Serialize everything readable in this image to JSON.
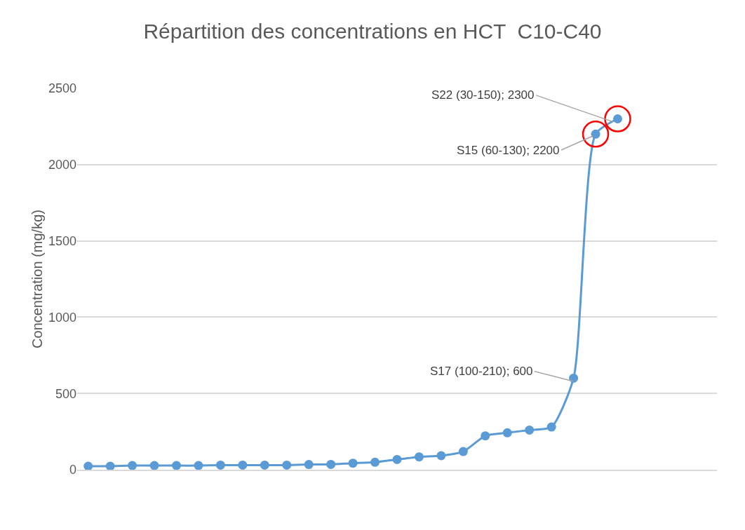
{
  "chart_data": {
    "type": "line",
    "title": "Répartition des concentrations en HCT  C10-C40",
    "ylabel": "Concentration (mg/kg)",
    "categories": [
      null,
      null,
      null,
      null,
      null,
      null,
      null,
      null,
      null,
      null,
      null,
      null,
      null,
      null,
      null,
      null,
      null,
      null,
      null,
      null,
      null,
      null,
      null,
      null,
      null,
      null,
      null,
      null,
      null
    ],
    "series": [
      {
        "color": "#5b9bd5",
        "values": [
          23,
          23,
          27,
          27,
          27,
          27,
          30,
          30,
          30,
          30,
          34,
          35,
          43,
          49,
          67,
          84,
          92,
          119,
          222,
          242,
          260,
          280,
          600,
          2200,
          2300,
          null,
          null,
          null,
          null
        ]
      },
      {
        "type": "scatter",
        "color": "#ff0000",
        "values": [
          null,
          null,
          null,
          null,
          null,
          null,
          null,
          null,
          null,
          null,
          null,
          null,
          null,
          null,
          null,
          null,
          null,
          null,
          null,
          null,
          null,
          null,
          null,
          2200,
          2300,
          null,
          null,
          null,
          null
        ]
      }
    ],
    "ylim": [
      0,
      2500
    ],
    "yticks": [
      0,
      500,
      1000,
      1500,
      2000,
      2500
    ],
    "grid": "y",
    "tick_labels": "y",
    "marker": "circle",
    "legend": false,
    "annotations": [
      "S22 (30-150); 2300",
      "S15 (60-130); 2200",
      "S17 (100-210); 600"
    ]
  }
}
